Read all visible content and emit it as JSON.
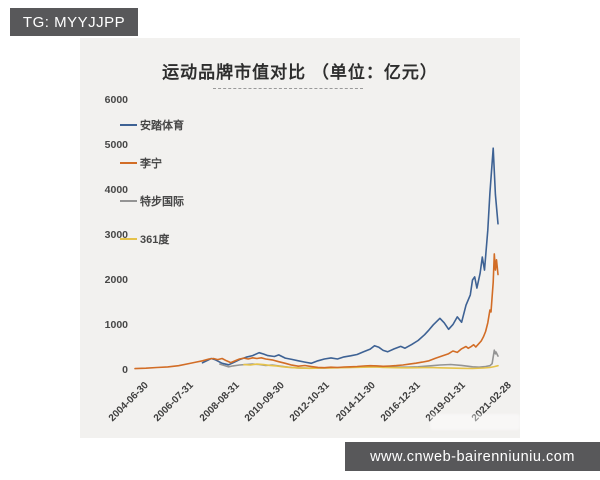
{
  "overlays": {
    "tg_badge_text": "TG: MYYJJPP",
    "url_badge_text": "www.cnweb-bairenniuniu.com"
  },
  "chart_data": {
    "type": "line",
    "title": "运动品牌市值对比 （单位：亿元）",
    "unit": "亿元",
    "grid": false,
    "legend_position": "upper-left-vertical",
    "ylim": [
      0,
      6000
    ],
    "y_ticks": [
      6000,
      5000,
      4000,
      3000,
      2000,
      1000,
      0
    ],
    "x_ticks": [
      {
        "label": "2004-06-30",
        "t": 2004.5
      },
      {
        "label": "2006-07-31",
        "t": 2006.58
      },
      {
        "label": "2008-08-31",
        "t": 2008.67
      },
      {
        "label": "2010-09-30",
        "t": 2010.75
      },
      {
        "label": "2012-10-31",
        "t": 2012.83
      },
      {
        "label": "2014-11-30",
        "t": 2014.92
      },
      {
        "label": "2016-12-31",
        "t": 2017.0
      },
      {
        "label": "2019-01-31",
        "t": 2019.08
      },
      {
        "label": "2021-02-28",
        "t": 2021.17
      }
    ],
    "x_range_years": [
      2004.5,
      2021.17
    ],
    "draw_order": [
      0,
      2,
      3,
      1
    ],
    "series": [
      {
        "name": "安踏体育",
        "key": "anta",
        "color": "#3e6294",
        "points": [
          [
            2007.6,
            160
          ],
          [
            2007.8,
            210
          ],
          [
            2008.0,
            255
          ],
          [
            2008.2,
            225
          ],
          [
            2008.5,
            150
          ],
          [
            2008.8,
            115
          ],
          [
            2009.0,
            160
          ],
          [
            2009.3,
            230
          ],
          [
            2009.6,
            285
          ],
          [
            2009.9,
            320
          ],
          [
            2010.2,
            385
          ],
          [
            2010.4,
            355
          ],
          [
            2010.6,
            320
          ],
          [
            2010.9,
            300
          ],
          [
            2011.1,
            335
          ],
          [
            2011.4,
            265
          ],
          [
            2011.7,
            235
          ],
          [
            2012.0,
            205
          ],
          [
            2012.3,
            175
          ],
          [
            2012.6,
            150
          ],
          [
            2012.9,
            205
          ],
          [
            2013.2,
            245
          ],
          [
            2013.5,
            270
          ],
          [
            2013.8,
            245
          ],
          [
            2014.1,
            290
          ],
          [
            2014.4,
            315
          ],
          [
            2014.7,
            345
          ],
          [
            2015.0,
            405
          ],
          [
            2015.3,
            465
          ],
          [
            2015.5,
            540
          ],
          [
            2015.7,
            505
          ],
          [
            2015.9,
            435
          ],
          [
            2016.1,
            405
          ],
          [
            2016.4,
            470
          ],
          [
            2016.7,
            525
          ],
          [
            2016.9,
            485
          ],
          [
            2017.2,
            565
          ],
          [
            2017.5,
            655
          ],
          [
            2017.8,
            785
          ],
          [
            2018.0,
            890
          ],
          [
            2018.2,
            1005
          ],
          [
            2018.5,
            1150
          ],
          [
            2018.7,
            1050
          ],
          [
            2018.9,
            905
          ],
          [
            2019.1,
            1010
          ],
          [
            2019.3,
            1180
          ],
          [
            2019.5,
            1060
          ],
          [
            2019.7,
            1440
          ],
          [
            2019.9,
            1670
          ],
          [
            2020.0,
            2000
          ],
          [
            2020.1,
            2070
          ],
          [
            2020.2,
            1820
          ],
          [
            2020.35,
            2150
          ],
          [
            2020.45,
            2510
          ],
          [
            2020.55,
            2220
          ],
          [
            2020.7,
            3110
          ],
          [
            2020.8,
            3930
          ],
          [
            2020.95,
            4930
          ],
          [
            2021.05,
            3900
          ],
          [
            2021.17,
            3250
          ]
        ]
      },
      {
        "name": "李宁",
        "key": "lining",
        "color": "#d26d26",
        "points": [
          [
            2004.5,
            30
          ],
          [
            2005.0,
            40
          ],
          [
            2005.5,
            55
          ],
          [
            2006.0,
            70
          ],
          [
            2006.5,
            95
          ],
          [
            2007.0,
            145
          ],
          [
            2007.3,
            175
          ],
          [
            2007.6,
            205
          ],
          [
            2007.9,
            245
          ],
          [
            2008.1,
            255
          ],
          [
            2008.3,
            230
          ],
          [
            2008.5,
            255
          ],
          [
            2008.7,
            205
          ],
          [
            2008.9,
            165
          ],
          [
            2009.1,
            205
          ],
          [
            2009.3,
            245
          ],
          [
            2009.5,
            265
          ],
          [
            2009.7,
            245
          ],
          [
            2009.9,
            272
          ],
          [
            2010.1,
            255
          ],
          [
            2010.3,
            272
          ],
          [
            2010.5,
            245
          ],
          [
            2010.8,
            225
          ],
          [
            2011.1,
            185
          ],
          [
            2011.4,
            150
          ],
          [
            2011.7,
            110
          ],
          [
            2012.0,
            85
          ],
          [
            2012.3,
            100
          ],
          [
            2012.6,
            75
          ],
          [
            2012.9,
            58
          ],
          [
            2013.2,
            52
          ],
          [
            2013.5,
            62
          ],
          [
            2013.8,
            56
          ],
          [
            2014.1,
            66
          ],
          [
            2014.4,
            72
          ],
          [
            2014.7,
            78
          ],
          [
            2015.0,
            88
          ],
          [
            2015.3,
            96
          ],
          [
            2015.6,
            90
          ],
          [
            2015.9,
            82
          ],
          [
            2016.2,
            88
          ],
          [
            2016.5,
            98
          ],
          [
            2016.8,
            112
          ],
          [
            2017.1,
            132
          ],
          [
            2017.4,
            152
          ],
          [
            2017.7,
            175
          ],
          [
            2018.0,
            205
          ],
          [
            2018.3,
            262
          ],
          [
            2018.6,
            312
          ],
          [
            2018.9,
            362
          ],
          [
            2019.1,
            422
          ],
          [
            2019.3,
            392
          ],
          [
            2019.5,
            472
          ],
          [
            2019.7,
            522
          ],
          [
            2019.8,
            482
          ],
          [
            2019.95,
            525
          ],
          [
            2020.05,
            562
          ],
          [
            2020.15,
            512
          ],
          [
            2020.25,
            565
          ],
          [
            2020.4,
            645
          ],
          [
            2020.5,
            735
          ],
          [
            2020.6,
            855
          ],
          [
            2020.7,
            1050
          ],
          [
            2020.8,
            1330
          ],
          [
            2020.85,
            1290
          ],
          [
            2020.95,
            1950
          ],
          [
            2021.0,
            2580
          ],
          [
            2021.05,
            2220
          ],
          [
            2021.1,
            2450
          ],
          [
            2021.17,
            2120
          ]
        ]
      },
      {
        "name": "特步国际",
        "key": "xtep",
        "color": "#949494",
        "points": [
          [
            2008.4,
            130
          ],
          [
            2008.6,
            100
          ],
          [
            2008.8,
            72
          ],
          [
            2009.0,
            92
          ],
          [
            2009.3,
            112
          ],
          [
            2009.6,
            122
          ],
          [
            2009.9,
            132
          ],
          [
            2010.2,
            122
          ],
          [
            2010.5,
            102
          ],
          [
            2010.8,
            112
          ],
          [
            2011.1,
            92
          ],
          [
            2011.4,
            72
          ],
          [
            2011.7,
            56
          ],
          [
            2012.0,
            46
          ],
          [
            2012.5,
            40
          ],
          [
            2013.0,
            46
          ],
          [
            2013.5,
            52
          ],
          [
            2014.0,
            56
          ],
          [
            2014.5,
            62
          ],
          [
            2015.0,
            82
          ],
          [
            2015.5,
            92
          ],
          [
            2016.0,
            72
          ],
          [
            2016.5,
            66
          ],
          [
            2017.0,
            62
          ],
          [
            2017.5,
            72
          ],
          [
            2018.0,
            92
          ],
          [
            2018.5,
            112
          ],
          [
            2019.0,
            122
          ],
          [
            2019.5,
            102
          ],
          [
            2020.0,
            72
          ],
          [
            2020.3,
            62
          ],
          [
            2020.6,
            78
          ],
          [
            2020.8,
            95
          ],
          [
            2020.9,
            140
          ],
          [
            2021.0,
            440
          ],
          [
            2021.05,
            360
          ],
          [
            2021.08,
            400
          ],
          [
            2021.17,
            310
          ]
        ]
      },
      {
        "name": "361度",
        "key": "361du",
        "color": "#e5c24a",
        "points": [
          [
            2009.5,
            120
          ],
          [
            2009.8,
            112
          ],
          [
            2010.1,
            130
          ],
          [
            2010.4,
            120
          ],
          [
            2010.7,
            102
          ],
          [
            2011.0,
            92
          ],
          [
            2011.3,
            72
          ],
          [
            2011.6,
            58
          ],
          [
            2011.9,
            48
          ],
          [
            2012.2,
            42
          ],
          [
            2012.5,
            38
          ],
          [
            2013.0,
            42
          ],
          [
            2013.5,
            46
          ],
          [
            2014.0,
            52
          ],
          [
            2014.5,
            56
          ],
          [
            2015.0,
            62
          ],
          [
            2015.5,
            66
          ],
          [
            2016.0,
            56
          ],
          [
            2016.5,
            52
          ],
          [
            2017.0,
            48
          ],
          [
            2017.5,
            52
          ],
          [
            2018.0,
            56
          ],
          [
            2018.5,
            48
          ],
          [
            2019.0,
            42
          ],
          [
            2019.5,
            38
          ],
          [
            2020.0,
            34
          ],
          [
            2020.5,
            44
          ],
          [
            2020.8,
            56
          ],
          [
            2021.0,
            75
          ],
          [
            2021.17,
            95
          ]
        ]
      }
    ]
  }
}
